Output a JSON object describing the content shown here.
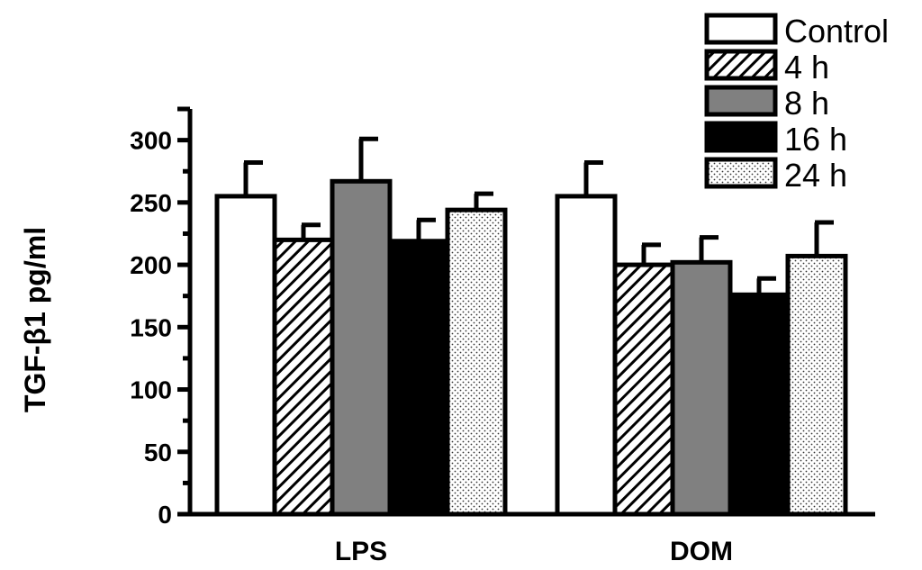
{
  "chart_data": {
    "type": "bar",
    "ylabel": "TGF-β1 pg/ml",
    "xlabel": "",
    "ylim": [
      0,
      325
    ],
    "yticks": [
      0,
      50,
      100,
      150,
      200,
      250,
      300
    ],
    "categories": [
      "LPS",
      "DOM"
    ],
    "legend_position": "top-right",
    "series": [
      {
        "name": "Control",
        "values": [
          255,
          255
        ],
        "errors": [
          27,
          27
        ],
        "fill": "white"
      },
      {
        "name": "4 h",
        "values": [
          220,
          200
        ],
        "errors": [
          12,
          16
        ],
        "fill": "hatch"
      },
      {
        "name": "8 h",
        "values": [
          267,
          202
        ],
        "errors": [
          34,
          20
        ],
        "fill": "#808080"
      },
      {
        "name": "16 h",
        "values": [
          219,
          176
        ],
        "errors": [
          17,
          13
        ],
        "fill": "#000000"
      },
      {
        "name": "24 h",
        "values": [
          244,
          207
        ],
        "errors": [
          13,
          27
        ],
        "fill": "dots"
      }
    ]
  }
}
